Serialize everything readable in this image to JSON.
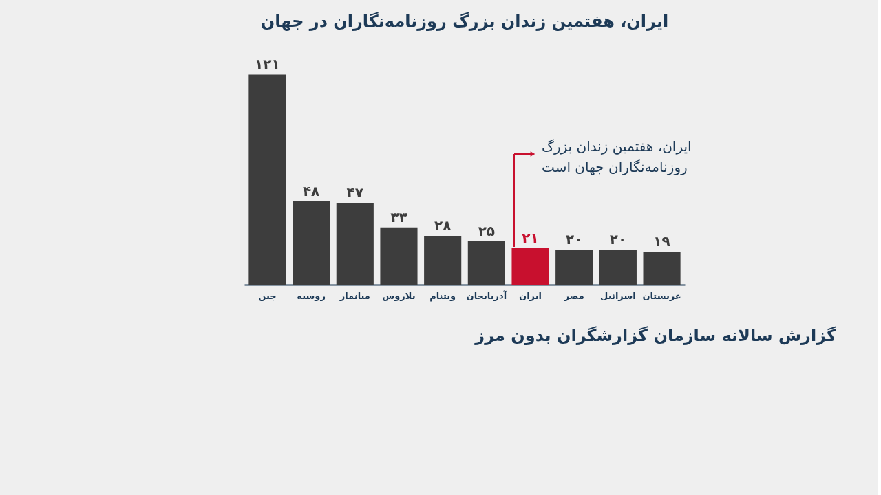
{
  "chart_data": {
    "type": "bar",
    "title": "ایران، هفتمین زندان بزرگ روزنامه‌نگاران در جهان",
    "categories": [
      "چین",
      "روسیه",
      "میانمار",
      "بلاروس",
      "ویتنام",
      "آذربایجان",
      "ایران",
      "مصر",
      "اسرائیل",
      "عربستان"
    ],
    "values": [
      121,
      48,
      47,
      33,
      28,
      25,
      21,
      20,
      20,
      19
    ],
    "value_labels": [
      "۱۲۱",
      "۴۸",
      "۴۷",
      "۳۳",
      "۲۸",
      "۲۵",
      "۲۱",
      "۲۰",
      "۲۰",
      "۱۹"
    ],
    "colors": [
      "#3d3d3d",
      "#3d3d3d",
      "#3d3d3d",
      "#3d3d3d",
      "#3d3d3d",
      "#3d3d3d",
      "#c8102e",
      "#3d3d3d",
      "#3d3d3d",
      "#3d3d3d"
    ],
    "annotations": [
      "ایران، هفتمین زندان بزرگ\nروزنامه‌نگاران جهان است",
      "گزارش سالانه سازمان گزارشگران بدون مرز"
    ]
  }
}
